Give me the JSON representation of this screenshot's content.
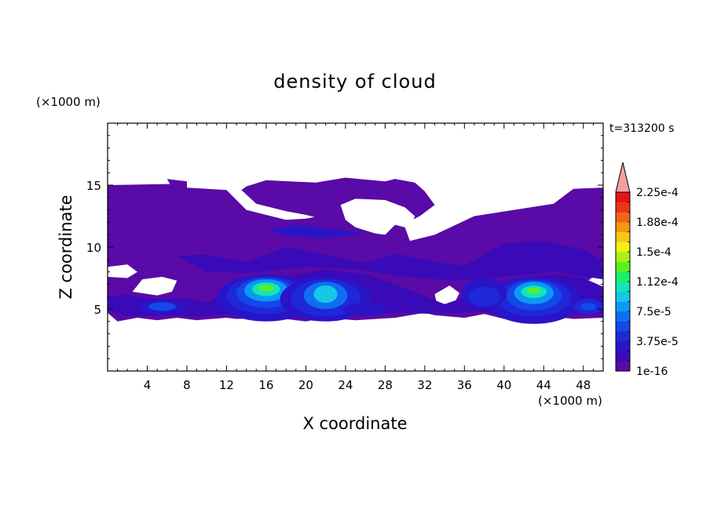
{
  "chart_data": {
    "type": "heatmap",
    "title": "density of cloud",
    "xlabel": "X coordinate",
    "ylabel": "Z coordinate",
    "x_unit": "(×1000 m)",
    "y_unit": "(×1000 m)",
    "time_label": "t=313200 s",
    "xlim": [
      0,
      50
    ],
    "ylim": [
      0,
      20
    ],
    "x_ticks": [
      4,
      8,
      12,
      16,
      20,
      24,
      28,
      32,
      36,
      40,
      44,
      48
    ],
    "y_ticks": [
      5,
      10,
      15
    ],
    "colorbar": {
      "colors": [
        "#5a0aa6",
        "#3a0ab8",
        "#2a14c8",
        "#1f28d8",
        "#1448e8",
        "#0f6ef2",
        "#0a9af5",
        "#14c8e6",
        "#14e6b4",
        "#1ef064",
        "#5af028",
        "#aaf014",
        "#f0f014",
        "#f5c814",
        "#f59614",
        "#f56414",
        "#f0321e",
        "#e61414"
      ],
      "extend_color": "#f5a0a0",
      "labels": [
        "1e-16",
        "3.75e-5",
        "7.5e-5",
        "1.12e-4",
        "1.5e-4",
        "1.88e-4",
        "2.25e-4"
      ]
    },
    "regions": {
      "base_layer": {
        "color_index": 0
      },
      "low_band": {
        "color_index": 1
      },
      "anvil": {
        "color_index": 1
      },
      "core_left": {
        "x": 16,
        "z": 6.5,
        "peak_color_index": 10
      },
      "core_mid": {
        "x": 22,
        "z": 6.2,
        "peak_color_index": 7
      },
      "core_right": {
        "x": 43,
        "z": 6.3,
        "peak_color_index": 10
      },
      "cell_small_left": {
        "x": 5.5,
        "z": 5.2
      },
      "cell_small_right": {
        "x": 48.5,
        "z": 5.2
      }
    }
  }
}
